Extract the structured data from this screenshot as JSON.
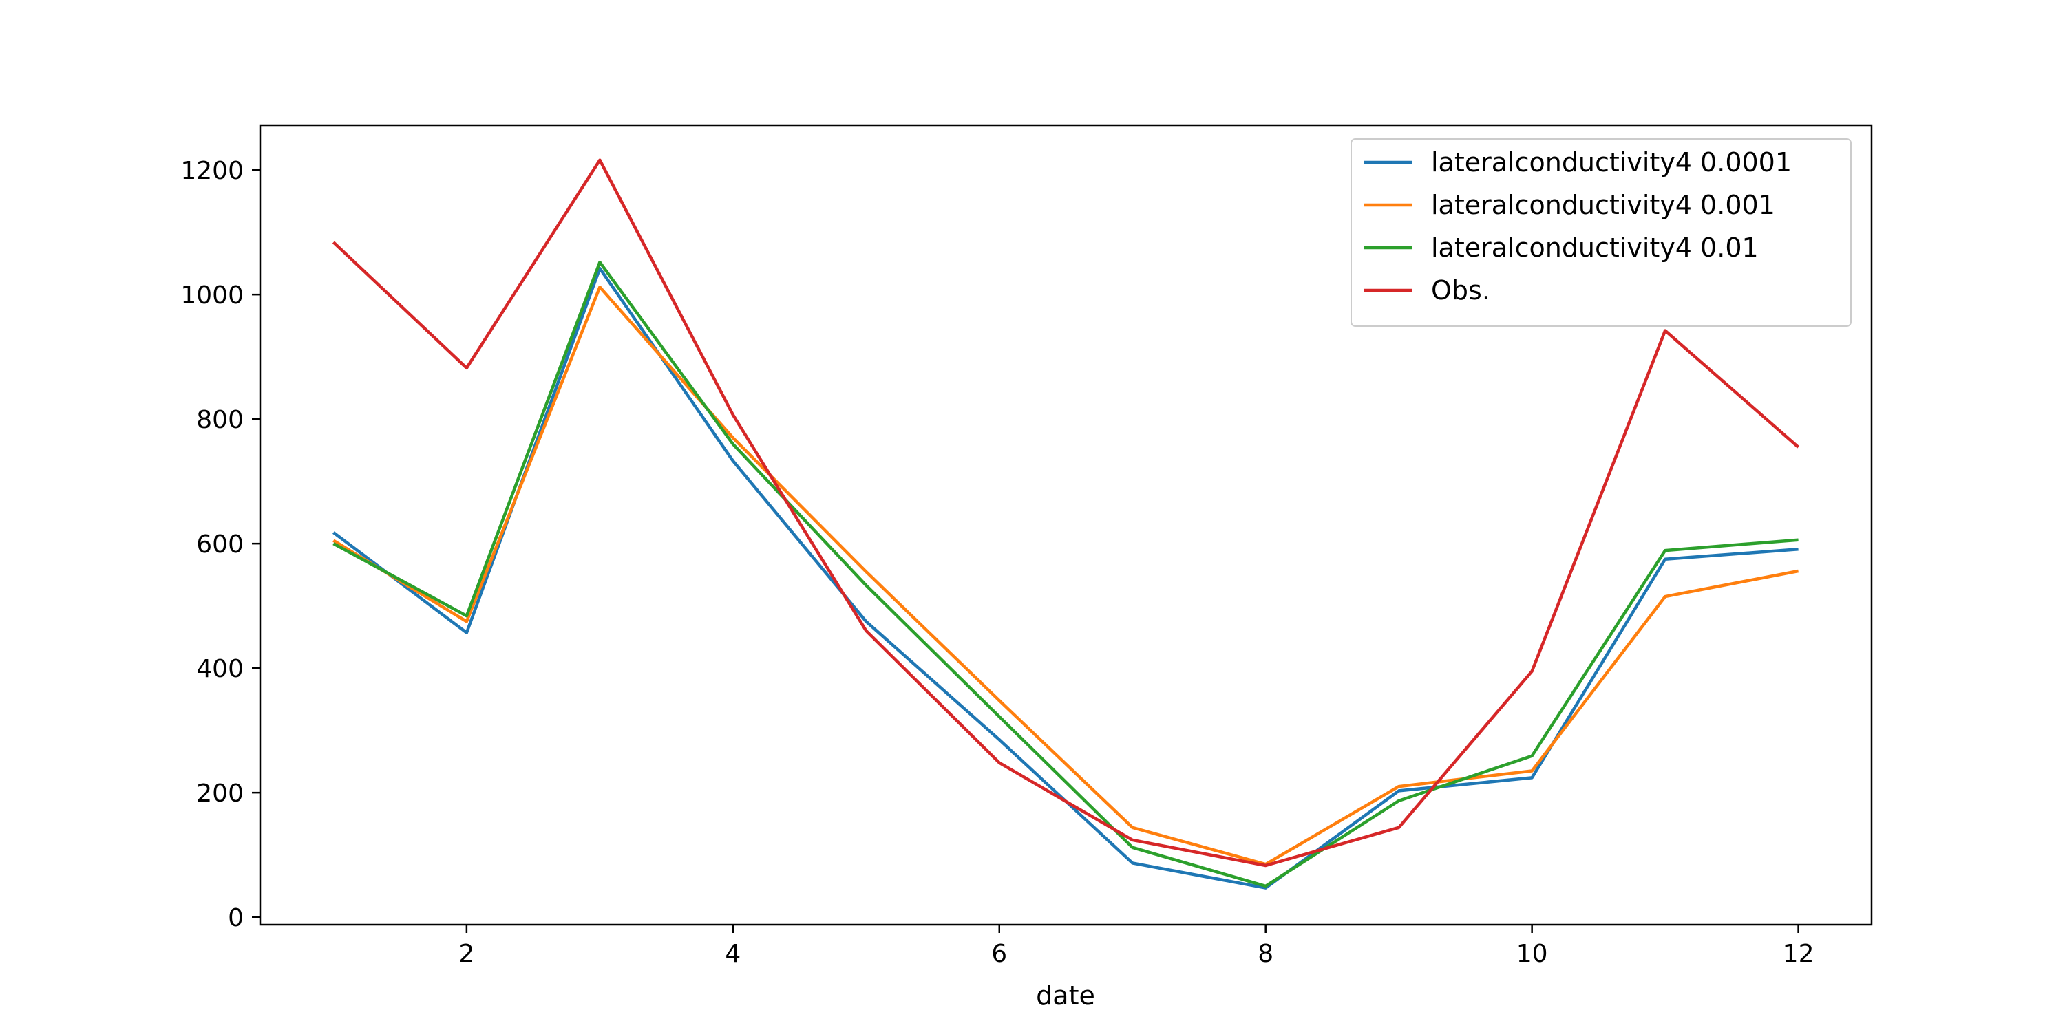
{
  "chart_data": {
    "type": "line",
    "title": "",
    "xlabel": "date",
    "ylabel": "",
    "xlim": [
      0.45,
      12.55
    ],
    "ylim": [
      -12,
      1272
    ],
    "x": [
      1,
      2,
      3,
      4,
      5,
      6,
      7,
      8,
      9,
      10,
      11,
      12
    ],
    "xticks": [
      2,
      4,
      6,
      8,
      10,
      12
    ],
    "yticks": [
      0,
      200,
      400,
      600,
      800,
      1000,
      1200
    ],
    "grid": false,
    "legend_position": "top-right",
    "series": [
      {
        "name": "lateralconductivity4 0.0001",
        "color": "#1f77b4",
        "values": [
          618,
          457,
          1042,
          733,
          475,
          285,
          87,
          47,
          203,
          224,
          575,
          591
        ]
      },
      {
        "name": "lateralconductivity4 0.001",
        "color": "#ff7f0e",
        "values": [
          605,
          475,
          1012,
          770,
          555,
          348,
          144,
          85,
          210,
          235,
          515,
          556
        ]
      },
      {
        "name": "lateralconductivity4 0.01",
        "color": "#2ca02c",
        "values": [
          600,
          484,
          1052,
          760,
          533,
          322,
          112,
          50,
          187,
          259,
          589,
          606
        ]
      },
      {
        "name": "Obs.",
        "color": "#d62728",
        "values": [
          1084,
          882,
          1216,
          807,
          460,
          248,
          124,
          83,
          144,
          395,
          942,
          755
        ]
      }
    ]
  }
}
